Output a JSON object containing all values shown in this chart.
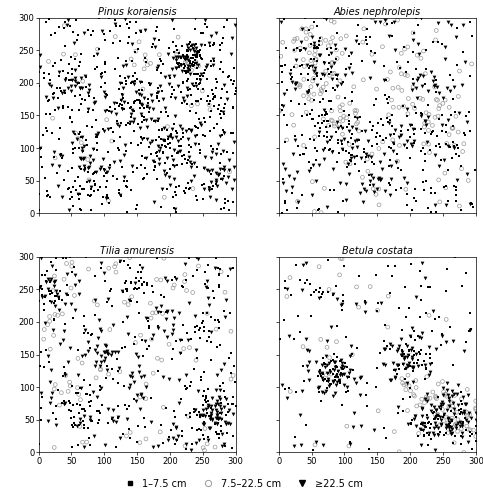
{
  "titles": [
    "Pinus koraiensis",
    "Abies nephrolepis",
    "Tilia amurensis",
    "Betula costata"
  ],
  "xlim": [
    0,
    300
  ],
  "ylim": [
    0,
    300
  ],
  "xticks": [
    0,
    50,
    100,
    150,
    200,
    250,
    300
  ],
  "yticks": [
    0,
    50,
    100,
    150,
    200,
    250,
    300
  ],
  "legend_labels": [
    "1–7.5 cm",
    "7.5–22.5 cm",
    "≥22.5 cm"
  ],
  "marker_small": "s",
  "marker_medium": "o",
  "marker_large": "v",
  "ms_small": 2.5,
  "ms_medium": 5.0,
  "ms_large": 4.5,
  "title_fontsize": 7,
  "tick_fontsize": 6,
  "legend_fontsize": 7,
  "figsize": [
    4.83,
    5.0
  ],
  "dpi": 100
}
